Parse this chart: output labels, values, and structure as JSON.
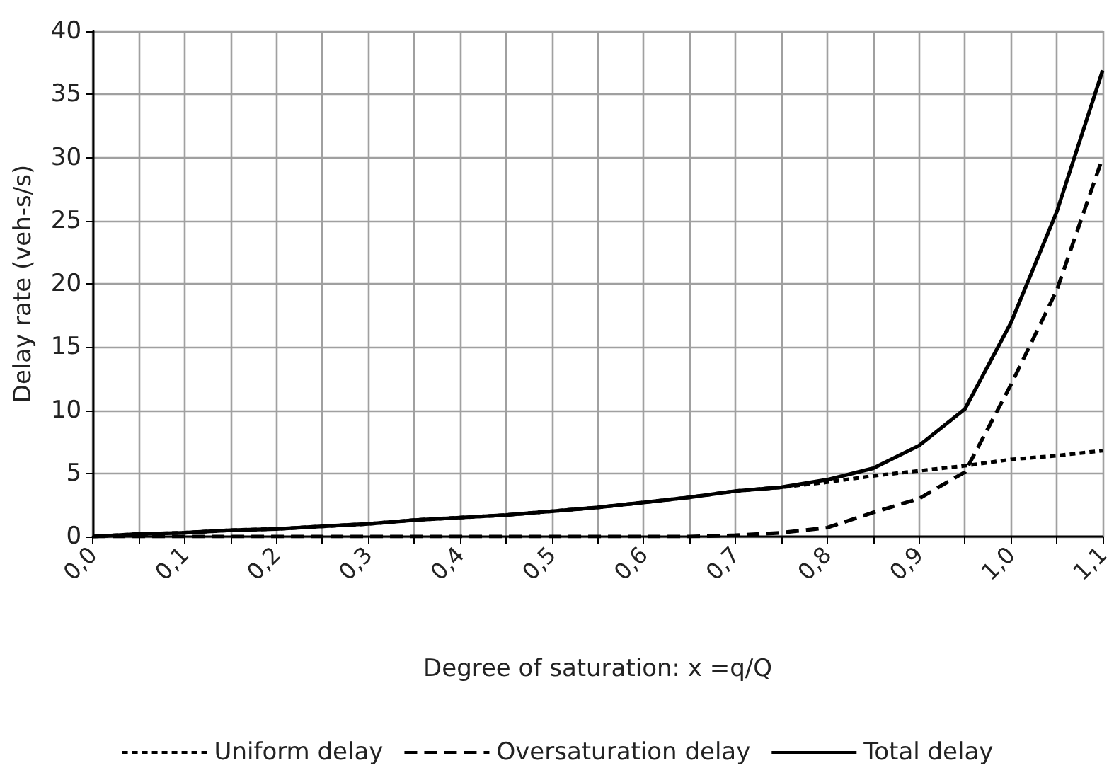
{
  "chart_data": {
    "type": "line",
    "xlabel": "Degree of saturation: x =q/Q",
    "ylabel": "Delay rate (veh-s/s)",
    "x": [
      0,
      0.05,
      0.1,
      0.15,
      0.2,
      0.25,
      0.3,
      0.35,
      0.4,
      0.45,
      0.5,
      0.55,
      0.6,
      0.65,
      0.7,
      0.75,
      0.8,
      0.85,
      0.9,
      0.95,
      1.0,
      1.05,
      1.1
    ],
    "series": [
      {
        "name": "Uniform delay",
        "color": "#000000",
        "line_style": "dotted",
        "values": [
          0,
          0.2,
          0.3,
          0.5,
          0.6,
          0.8,
          1.0,
          1.3,
          1.5,
          1.7,
          2.0,
          2.3,
          2.7,
          3.1,
          3.6,
          3.9,
          4.3,
          4.8,
          5.2,
          5.6,
          6.1,
          6.4,
          6.8
        ]
      },
      {
        "name": "Oversaturation delay",
        "color": "#000000",
        "line_style": "dashed",
        "values": [
          0,
          0,
          0,
          0,
          0,
          0,
          0,
          0,
          0,
          0,
          0,
          0,
          0,
          0,
          0.1,
          0.3,
          0.7,
          1.9,
          3.0,
          5.1,
          12,
          19.5,
          30
        ]
      },
      {
        "name": "Total delay",
        "color": "#000000",
        "line_style": "solid",
        "values": [
          0,
          0.2,
          0.3,
          0.5,
          0.6,
          0.8,
          1.0,
          1.3,
          1.5,
          1.7,
          2.0,
          2.3,
          2.7,
          3.1,
          3.6,
          3.9,
          4.5,
          5.4,
          7.2,
          10.1,
          16.9,
          25.7,
          36.9
        ]
      }
    ],
    "xlim": [
      0,
      1.1
    ],
    "xticks": [
      {
        "value": 0,
        "label": "0,0"
      },
      {
        "value": 0.05,
        "label": null
      },
      {
        "value": 0.1,
        "label": "0,1"
      },
      {
        "value": 0.15,
        "label": null
      },
      {
        "value": 0.2,
        "label": "0,2"
      },
      {
        "value": 0.25,
        "label": null
      },
      {
        "value": 0.3,
        "label": "0,3"
      },
      {
        "value": 0.35,
        "label": null
      },
      {
        "value": 0.4,
        "label": "0,4"
      },
      {
        "value": 0.45,
        "label": null
      },
      {
        "value": 0.5,
        "label": "0,5"
      },
      {
        "value": 0.55,
        "label": null
      },
      {
        "value": 0.6,
        "label": "0,6"
      },
      {
        "value": 0.65,
        "label": null
      },
      {
        "value": 0.7,
        "label": "0,7"
      },
      {
        "value": 0.75,
        "label": null
      },
      {
        "value": 0.8,
        "label": "0,8"
      },
      {
        "value": 0.85,
        "label": null
      },
      {
        "value": 0.9,
        "label": "0,9"
      },
      {
        "value": 0.95,
        "label": null
      },
      {
        "value": 1.0,
        "label": "1,0"
      },
      {
        "value": 1.05,
        "label": null
      },
      {
        "value": 1.1,
        "label": "1,1"
      }
    ],
    "ylim": [
      0,
      40
    ],
    "yticks": [
      0,
      5,
      10,
      15,
      20,
      25,
      30,
      35,
      40
    ],
    "grid": true,
    "legend": "bottom",
    "marker": "none"
  }
}
